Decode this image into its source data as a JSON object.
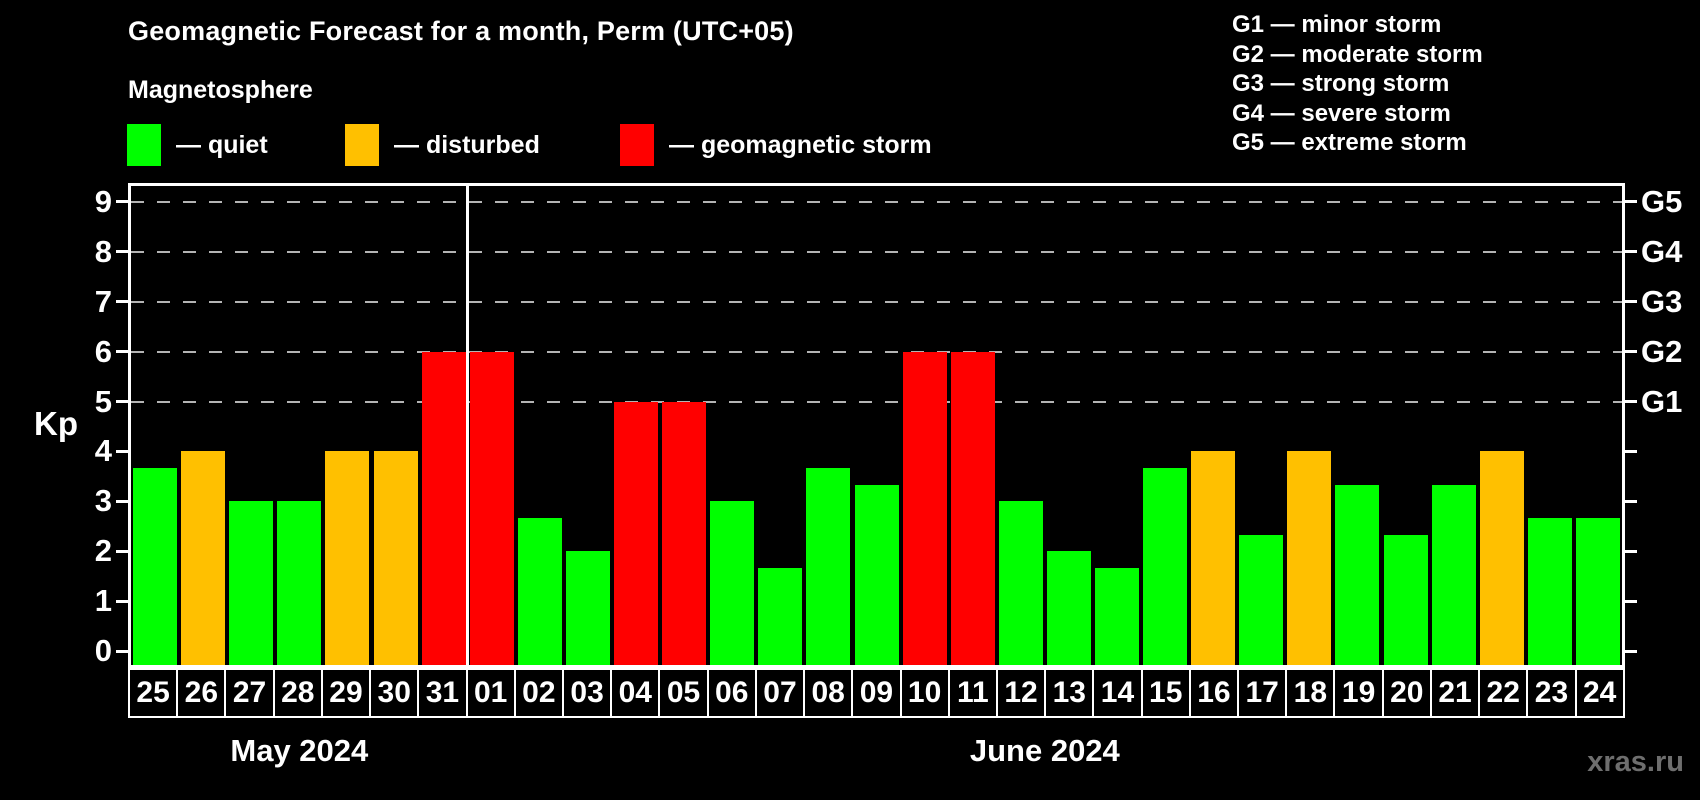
{
  "header": {
    "title": "Geomagnetic Forecast for a month, Perm (UTC+05)",
    "subtitle": "Magnetosphere"
  },
  "legend": {
    "items": [
      {
        "label": "— quiet",
        "status": "quiet",
        "color": "#00ff00"
      },
      {
        "label": "— disturbed",
        "status": "disturbed",
        "color": "#ffc000"
      },
      {
        "label": "— geomagnetic storm",
        "status": "storm",
        "color": "#ff0000"
      }
    ]
  },
  "g_legend": [
    "G1 — minor storm",
    "G2 — moderate storm",
    "G3 — strong storm",
    "G4 — severe storm",
    "G5 — extreme storm"
  ],
  "watermark": "xras.ru",
  "chart_data": {
    "type": "bar",
    "title": "Geomagnetic Forecast for a month, Perm (UTC+05)",
    "ylabel": "Kp",
    "ylim": [
      0,
      9.4
    ],
    "yticks": [
      0,
      1,
      2,
      3,
      4,
      5,
      6,
      7,
      8,
      9
    ],
    "gridlines_at": [
      5,
      6,
      7,
      8,
      9
    ],
    "grid": "dashed horizontal lines at Kp 5-9 only",
    "right_axis": [
      {
        "kp": 5,
        "label": "G1"
      },
      {
        "kp": 6,
        "label": "G2"
      },
      {
        "kp": 7,
        "label": "G3"
      },
      {
        "kp": 8,
        "label": "G4"
      },
      {
        "kp": 9,
        "label": "G5"
      }
    ],
    "months": [
      {
        "label": "May 2024",
        "days": 7
      },
      {
        "label": "June 2024",
        "days": 24
      }
    ],
    "categories": [
      "25",
      "26",
      "27",
      "28",
      "29",
      "30",
      "31",
      "01",
      "02",
      "03",
      "04",
      "05",
      "06",
      "07",
      "08",
      "09",
      "10",
      "11",
      "12",
      "13",
      "14",
      "15",
      "16",
      "17",
      "18",
      "19",
      "20",
      "21",
      "22",
      "23",
      "24"
    ],
    "values": [
      3.67,
      4,
      3,
      3,
      4,
      4,
      6,
      6,
      2.67,
      2,
      5,
      5,
      3,
      1.67,
      3.67,
      3.33,
      6,
      6,
      3,
      2,
      1.67,
      3.67,
      4,
      2.33,
      4,
      3.33,
      2.33,
      3.33,
      4,
      2.67,
      2.67
    ],
    "statuses": [
      "quiet",
      "disturbed",
      "quiet",
      "quiet",
      "disturbed",
      "disturbed",
      "storm",
      "storm",
      "quiet",
      "quiet",
      "storm",
      "storm",
      "quiet",
      "quiet",
      "quiet",
      "quiet",
      "storm",
      "storm",
      "quiet",
      "quiet",
      "quiet",
      "quiet",
      "disturbed",
      "quiet",
      "disturbed",
      "quiet",
      "quiet",
      "quiet",
      "disturbed",
      "quiet",
      "quiet"
    ],
    "color_map": {
      "quiet": "#00ff00",
      "disturbed": "#ffc000",
      "storm": "#ff0000"
    }
  }
}
